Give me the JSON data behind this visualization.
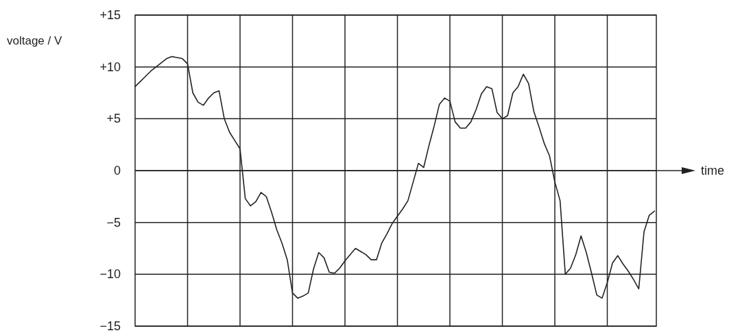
{
  "chart_data": {
    "type": "line",
    "xlabel": "time",
    "ylabel": "voltage / V",
    "categories": [
      null,
      null,
      null,
      null,
      null,
      null,
      null,
      null,
      null,
      null,
      null,
      null,
      null,
      null,
      null,
      null,
      null,
      null,
      null,
      null,
      null,
      null,
      null,
      null,
      null,
      null,
      null,
      null,
      null,
      null,
      null,
      null,
      null,
      null,
      null,
      null,
      null,
      null,
      null,
      null,
      null,
      null,
      null,
      null,
      null,
      null,
      null,
      null,
      null,
      null,
      null,
      null,
      null,
      null,
      null,
      null,
      null,
      null,
      null,
      null,
      null,
      null,
      null,
      null,
      null,
      null,
      null,
      null,
      null,
      null,
      null,
      null,
      null,
      null,
      null,
      null,
      null,
      null,
      null,
      null,
      null,
      null,
      null,
      null,
      null,
      null,
      null,
      null,
      null,
      null,
      null,
      null,
      null,
      null,
      null,
      null,
      null,
      null,
      null,
      null
    ],
    "ylim": [
      -15,
      15
    ],
    "yticks": [
      {
        "value": 15,
        "label": "+15"
      },
      {
        "value": 10,
        "label": "+10"
      },
      {
        "value": 5,
        "label": "+5"
      },
      {
        "value": 0,
        "label": "0"
      },
      {
        "value": -5,
        "label": "−5"
      },
      {
        "value": -10,
        "label": "−10"
      },
      {
        "value": -15,
        "label": "−15"
      }
    ],
    "tick_labels": "y",
    "grid": true,
    "marker": "none",
    "line_style": "solid",
    "series": [
      {
        "color": "#222222",
        "values": [
          8.1,
          8.6,
          9.1,
          9.6,
          10,
          10.4,
          10.8,
          11,
          10.9,
          10.8,
          10.3,
          7.5,
          6.6,
          6.3,
          7,
          7.5,
          7.7,
          5,
          3.7,
          2.9,
          2.1,
          -2.7,
          -3.4,
          -3,
          -2.1,
          -2.5,
          -4,
          -5.7,
          -7,
          -8.6,
          -11.8,
          -12.3,
          -12.1,
          -11.8,
          -9.5,
          -7.9,
          -8.4,
          -9.8,
          -9.9,
          -9.4,
          -8.7,
          -8.1,
          -7.5,
          -7.8,
          -8.1,
          -8.6,
          -8.6,
          -7,
          -6.1,
          -5.1,
          -4.4,
          -3.7,
          -2.9,
          -1.1,
          0.7,
          0.3,
          2.4,
          4.3,
          6.4,
          7,
          6.7,
          4.7,
          4.1,
          4.1,
          4.7,
          5.9,
          7.4,
          8.1,
          7.9,
          5.6,
          5,
          5.3,
          7.5,
          8.1,
          9.3,
          8.4,
          5.7,
          4.2,
          2.6,
          1.4,
          -1.1,
          -2.9,
          -10,
          -9.4,
          -8.1,
          -6.3,
          -7.9,
          -9.9,
          -12,
          -12.3,
          -10.8,
          -8.9,
          -8.2,
          -9,
          -9.7,
          -10.5,
          -11.4,
          -5.9,
          -4.3,
          -3.9
        ]
      }
    ]
  }
}
